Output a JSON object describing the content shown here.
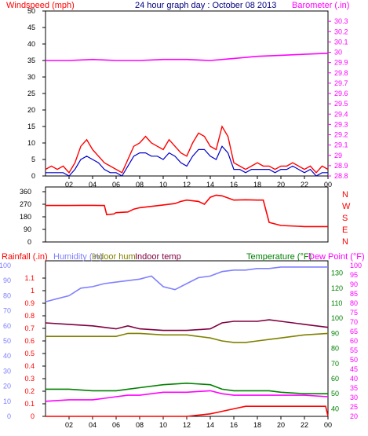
{
  "header": {
    "wind_label": "Windspeed (mph)",
    "title": "24 hour graph day : October 08 2013",
    "baro_label": "Barometer (.in)",
    "rain_label": "Rainfall (.in)",
    "humidity_label": "Humidity (%)",
    "indoor_hum_label": "Indoor hum",
    "indoor_temp_label": "Indoor temp",
    "temperature_label": "Temperature (°F)",
    "dewpoint_label": "Dew Point (°F)"
  },
  "colors": {
    "wind_gust": "#ff0000",
    "wind_avg": "#0000cc",
    "barometer": "#ff00ff",
    "direction": "#ff0000",
    "humidity": "#8080ff",
    "indoor_hum": "#808000",
    "indoor_temp": "#800040",
    "temperature": "#008000",
    "dewpoint": "#ff00ff",
    "rain": "#ff0000",
    "axis_right_green": "#008000",
    "axis_blue": "#8080ff"
  },
  "chart_data": [
    {
      "type": "line",
      "name": "wind-barometer",
      "title": "24 hour graph day : October 08 2013",
      "x_ticks": [
        "02",
        "04",
        "06",
        "08",
        "10",
        "12",
        "14",
        "16",
        "18",
        "20",
        "22",
        "00"
      ],
      "x_range_hours": [
        0,
        24
      ],
      "ylabel_left": "Windspeed (mph)",
      "ylim_left": [
        0,
        50
      ],
      "yticks_left": [
        "0",
        "5",
        "10",
        "15",
        "20",
        "25",
        "30",
        "35",
        "40",
        "45",
        "50"
      ],
      "ylabel_right": "Barometer (.in)",
      "ylim_right": [
        28.8,
        30.4
      ],
      "yticks_right": [
        "28.8",
        "28.9",
        "29",
        "29.1",
        "29.2",
        "29.3",
        "29.4",
        "29.5",
        "29.6",
        "29.7",
        "29.8",
        "29.9",
        "30",
        "30.1",
        "30.2",
        "30.3"
      ],
      "series": [
        {
          "key": "gust",
          "hours": [
            0,
            0.5,
            1,
            1.5,
            2,
            2.5,
            3,
            3.5,
            4,
            4.5,
            5,
            5.5,
            6,
            6.5,
            7,
            7.5,
            8,
            8.5,
            9,
            9.5,
            10,
            10.5,
            11,
            11.5,
            12,
            12.5,
            13,
            13.5,
            14,
            14.5,
            15,
            15.5,
            16,
            16.5,
            17,
            17.5,
            18,
            18.5,
            19,
            19.5,
            20,
            20.5,
            21,
            21.5,
            22,
            22.5,
            23,
            23.5,
            24
          ],
          "values": [
            2,
            3,
            2,
            3,
            1,
            4,
            9,
            11,
            8,
            6,
            4,
            3,
            2,
            1,
            5,
            9,
            10,
            12,
            10,
            9,
            8,
            11,
            9,
            7,
            6,
            10,
            13,
            12,
            9,
            8,
            15,
            12,
            4,
            3,
            2,
            3,
            4,
            3,
            3,
            2,
            3,
            3,
            4,
            3,
            2,
            3,
            1,
            3,
            2
          ]
        },
        {
          "key": "average",
          "hours": [
            0,
            0.5,
            1,
            1.5,
            2,
            2.5,
            3,
            3.5,
            4,
            4.5,
            5,
            5.5,
            6,
            6.5,
            7,
            7.5,
            8,
            8.5,
            9,
            9.5,
            10,
            10.5,
            11,
            11.5,
            12,
            12.5,
            13,
            13.5,
            14,
            14.5,
            15,
            15.5,
            16,
            16.5,
            17,
            17.5,
            18,
            18.5,
            19,
            19.5,
            20,
            20.5,
            21,
            21.5,
            22,
            22.5,
            23,
            23.5,
            24
          ],
          "values": [
            1,
            1,
            1,
            1,
            0,
            2,
            5,
            6,
            5,
            4,
            2,
            1,
            1,
            0,
            3,
            6,
            7,
            7,
            6,
            6,
            5,
            7,
            6,
            4,
            3,
            6,
            8,
            8,
            6,
            5,
            9,
            7,
            2,
            2,
            1,
            2,
            2,
            2,
            2,
            1,
            2,
            2,
            3,
            2,
            1,
            2,
            0,
            1,
            1
          ]
        },
        {
          "key": "barometer",
          "hours": [
            0,
            2,
            4,
            6,
            8,
            10,
            12,
            14,
            16,
            18,
            20,
            22,
            24
          ],
          "values": [
            29.92,
            29.92,
            29.93,
            29.92,
            29.92,
            29.93,
            29.93,
            29.92,
            29.94,
            29.96,
            29.97,
            29.98,
            29.99
          ]
        }
      ]
    },
    {
      "type": "line",
      "name": "wind-direction",
      "ylim": [
        0,
        360
      ],
      "yticks": [
        "0",
        "90",
        "180",
        "270",
        "360"
      ],
      "compass_labels": [
        "N",
        "W",
        "S",
        "E",
        "N"
      ],
      "hours": [
        0,
        1,
        2,
        3,
        4,
        5,
        5.2,
        5.8,
        6,
        7,
        7.5,
        8,
        9,
        10,
        11,
        11.5,
        12,
        13,
        13.5,
        14,
        14.5,
        15,
        16,
        17,
        18,
        18.5,
        19,
        20,
        22,
        24
      ],
      "values": [
        261,
        261,
        261,
        262,
        262,
        261,
        195,
        200,
        210,
        215,
        235,
        245,
        255,
        265,
        275,
        290,
        300,
        290,
        270,
        320,
        335,
        330,
        300,
        302,
        300,
        300,
        140,
        118,
        110,
        110
      ]
    },
    {
      "type": "line",
      "name": "temperature-humidity-rain",
      "x_ticks": [
        "02",
        "04",
        "06",
        "08",
        "10",
        "12",
        "14",
        "16",
        "18",
        "20",
        "22",
        "00"
      ],
      "ylabel_left_rain": "Rainfall (.in)",
      "ylim_rain": [
        0,
        1.2
      ],
      "yticks_rain": [
        "0",
        "0.1",
        "0.2",
        "0.3",
        "0.4",
        "0.5",
        "0.6",
        "0.7",
        "0.8",
        "0.9",
        "1",
        "1.1"
      ],
      "ylim_humidity": [
        0,
        100
      ],
      "yticks_humidity": [
        "0",
        "10",
        "20",
        "30",
        "40",
        "50",
        "60",
        "70",
        "80",
        "90",
        "100"
      ],
      "ylim_temp": [
        35,
        135
      ],
      "yticks_temp_left": [
        "20",
        "25",
        "30",
        "35",
        "40",
        "45",
        "50",
        "55",
        "60",
        "65",
        "70",
        "75",
        "80",
        "85",
        "90",
        "95",
        "100"
      ],
      "yticks_temp_right": [
        "40",
        "50",
        "60",
        "70",
        "80",
        "90",
        "100",
        "110",
        "120",
        "130"
      ],
      "series": [
        {
          "key": "humidity",
          "hours": [
            0,
            1,
            2,
            3,
            4,
            5,
            6,
            7,
            8,
            9,
            10,
            11,
            12,
            13,
            14,
            15,
            16,
            17,
            18,
            19,
            20,
            21,
            22,
            23,
            24
          ],
          "values": [
            76,
            78,
            80,
            85,
            86,
            88,
            89,
            90,
            91,
            93,
            86,
            84,
            88,
            92,
            93,
            96,
            97,
            97,
            98,
            98,
            99,
            99,
            99,
            99,
            99
          ]
        },
        {
          "key": "indoor_hum",
          "hours": [
            0,
            2,
            4,
            5,
            6,
            7,
            8,
            10,
            12,
            14,
            15,
            16,
            17,
            18,
            19,
            20,
            22,
            24
          ],
          "values": [
            53,
            53,
            53,
            53,
            53,
            55,
            55,
            54,
            54,
            52,
            50,
            49,
            49,
            50,
            51,
            52,
            54,
            55
          ]
        },
        {
          "key": "indoor_temp",
          "hours": [
            0,
            2,
            4,
            5,
            6,
            7,
            8,
            10,
            12,
            14,
            15,
            16,
            17,
            18,
            19,
            20,
            22,
            24
          ],
          "values": [
            62,
            61,
            60,
            59,
            58,
            60,
            58,
            57,
            57,
            58,
            62,
            63,
            63,
            63,
            64,
            63,
            61,
            59
          ]
        },
        {
          "key": "temperature",
          "hours": [
            0,
            2,
            4,
            5,
            6,
            7,
            8,
            10,
            12,
            14,
            15,
            16,
            17,
            18,
            19,
            20,
            22,
            24
          ],
          "values": [
            18,
            18,
            17,
            17,
            17,
            18,
            19,
            21,
            22,
            21,
            18,
            17,
            17,
            17,
            17,
            16,
            15,
            15
          ]
        },
        {
          "key": "dewpoint",
          "hours": [
            0,
            2,
            4,
            5,
            6,
            7,
            8,
            10,
            12,
            14,
            15,
            16,
            17,
            18,
            19,
            20,
            22,
            24
          ],
          "values": [
            10,
            11,
            11,
            12,
            13,
            14,
            14,
            16,
            16,
            17,
            15,
            14,
            14,
            14,
            14,
            14,
            14,
            13
          ]
        },
        {
          "key": "rain",
          "hours": [
            0,
            12,
            14,
            15,
            16,
            17,
            18,
            20,
            22,
            23.8,
            24
          ],
          "values": [
            0,
            0,
            0.02,
            0.04,
            0.06,
            0.08,
            0.08,
            0.08,
            0.08,
            0.08,
            0
          ]
        }
      ]
    }
  ]
}
